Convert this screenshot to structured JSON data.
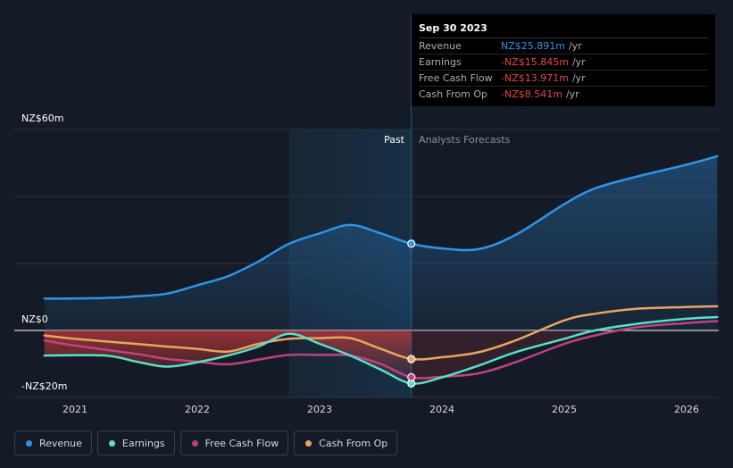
{
  "chart_data": {
    "type": "area",
    "currency_note": "NZ$",
    "y_labels": [
      "NZ$60m",
      "NZ$0",
      "-NZ$20m"
    ],
    "ylim": [
      -20,
      60
    ],
    "xlim": [
      2020.75,
      2026.25
    ],
    "x_ticks": [
      "2021",
      "2022",
      "2023",
      "2024",
      "2025",
      "2026"
    ],
    "divider_x": 2023.75,
    "past_label": "Past",
    "forecast_label": "Analysts Forecasts",
    "series": [
      {
        "name": "Revenue",
        "color": "#2f94e6",
        "points": [
          [
            2020.75,
            9.5
          ],
          [
            2021.25,
            9.7
          ],
          [
            2021.5,
            10.2
          ],
          [
            2021.75,
            11
          ],
          [
            2022.0,
            13.5
          ],
          [
            2022.25,
            16.2
          ],
          [
            2022.5,
            20.6
          ],
          [
            2022.75,
            25.9
          ],
          [
            2023.0,
            29
          ],
          [
            2023.25,
            31.5
          ],
          [
            2023.5,
            29
          ],
          [
            2023.75,
            25.9
          ],
          [
            2024.0,
            24.5
          ],
          [
            2024.3,
            24.3
          ],
          [
            2024.6,
            28.5
          ],
          [
            2025.0,
            37.7
          ],
          [
            2025.25,
            42.4
          ],
          [
            2025.6,
            46
          ],
          [
            2026.0,
            49.5
          ],
          [
            2026.25,
            52
          ]
        ]
      },
      {
        "name": "Earnings",
        "color": "#58e0c8",
        "points": [
          [
            2020.75,
            -7.5
          ],
          [
            2021.25,
            -7.5
          ],
          [
            2021.5,
            -9.3
          ],
          [
            2021.75,
            -10.8
          ],
          [
            2022.0,
            -9.5
          ],
          [
            2022.25,
            -7.5
          ],
          [
            2022.5,
            -4.8
          ],
          [
            2022.75,
            -1
          ],
          [
            2023.0,
            -4
          ],
          [
            2023.25,
            -7.5
          ],
          [
            2023.5,
            -11.7
          ],
          [
            2023.75,
            -15.8
          ],
          [
            2024.0,
            -14
          ],
          [
            2024.3,
            -10.5
          ],
          [
            2024.6,
            -6.5
          ],
          [
            2025.0,
            -2.5
          ],
          [
            2025.25,
            0
          ],
          [
            2025.6,
            2
          ],
          [
            2026.0,
            3.5
          ],
          [
            2026.25,
            4
          ]
        ]
      },
      {
        "name": "Free Cash Flow",
        "color": "#c0417f",
        "points": [
          [
            2020.75,
            -3
          ],
          [
            2021.0,
            -4.5
          ],
          [
            2021.5,
            -7
          ],
          [
            2021.75,
            -8.5
          ],
          [
            2022.0,
            -9.3
          ],
          [
            2022.25,
            -10.1
          ],
          [
            2022.5,
            -8.7
          ],
          [
            2022.75,
            -7.3
          ],
          [
            2023.0,
            -7.3
          ],
          [
            2023.25,
            -7.5
          ],
          [
            2023.5,
            -10
          ],
          [
            2023.75,
            -14
          ],
          [
            2024.0,
            -13.8
          ],
          [
            2024.3,
            -12.8
          ],
          [
            2024.6,
            -9.5
          ],
          [
            2025.0,
            -4
          ],
          [
            2025.25,
            -1.5
          ],
          [
            2025.6,
            1
          ],
          [
            2026.0,
            2.2
          ],
          [
            2026.25,
            2.8
          ]
        ]
      },
      {
        "name": "Cash From Op",
        "color": "#e8a55f",
        "points": [
          [
            2020.75,
            -1.5
          ],
          [
            2021.0,
            -2.5
          ],
          [
            2021.5,
            -4
          ],
          [
            2021.75,
            -4.8
          ],
          [
            2022.0,
            -5.5
          ],
          [
            2022.25,
            -6.3
          ],
          [
            2022.5,
            -4
          ],
          [
            2022.75,
            -2.5
          ],
          [
            2023.0,
            -2.3
          ],
          [
            2023.25,
            -2.3
          ],
          [
            2023.5,
            -5.5
          ],
          [
            2023.75,
            -8.5
          ],
          [
            2024.0,
            -8
          ],
          [
            2024.3,
            -6.5
          ],
          [
            2024.6,
            -3
          ],
          [
            2025.0,
            3
          ],
          [
            2025.25,
            5
          ],
          [
            2025.6,
            6.5
          ],
          [
            2026.0,
            7
          ],
          [
            2026.25,
            7.2
          ]
        ]
      }
    ],
    "highlight_points": [
      {
        "series": "Revenue",
        "x": 2023.75,
        "y": 25.891
      },
      {
        "series": "Earnings",
        "x": 2023.75,
        "y": -15.845
      },
      {
        "series": "Free Cash Flow",
        "x": 2023.75,
        "y": -13.971
      },
      {
        "series": "Cash From Op",
        "x": 2023.75,
        "y": -8.541
      }
    ]
  },
  "tooltip": {
    "date": "Sep 30 2023",
    "rows": [
      {
        "label": "Revenue",
        "value": "NZ$25.891m",
        "unit": "/yr",
        "color": "#2f94e6"
      },
      {
        "label": "Earnings",
        "value": "-NZ$15.845m",
        "unit": "/yr",
        "color": "#e64545"
      },
      {
        "label": "Free Cash Flow",
        "value": "-NZ$13.971m",
        "unit": "/yr",
        "color": "#e64545"
      },
      {
        "label": "Cash From Op",
        "value": "-NZ$8.541m",
        "unit": "/yr",
        "color": "#e64545"
      }
    ]
  },
  "legend": [
    {
      "label": "Revenue",
      "color": "#2f94e6"
    },
    {
      "label": "Earnings",
      "color": "#58e0c8"
    },
    {
      "label": "Free Cash Flow",
      "color": "#c0417f"
    },
    {
      "label": "Cash From Op",
      "color": "#e8a55f"
    }
  ]
}
